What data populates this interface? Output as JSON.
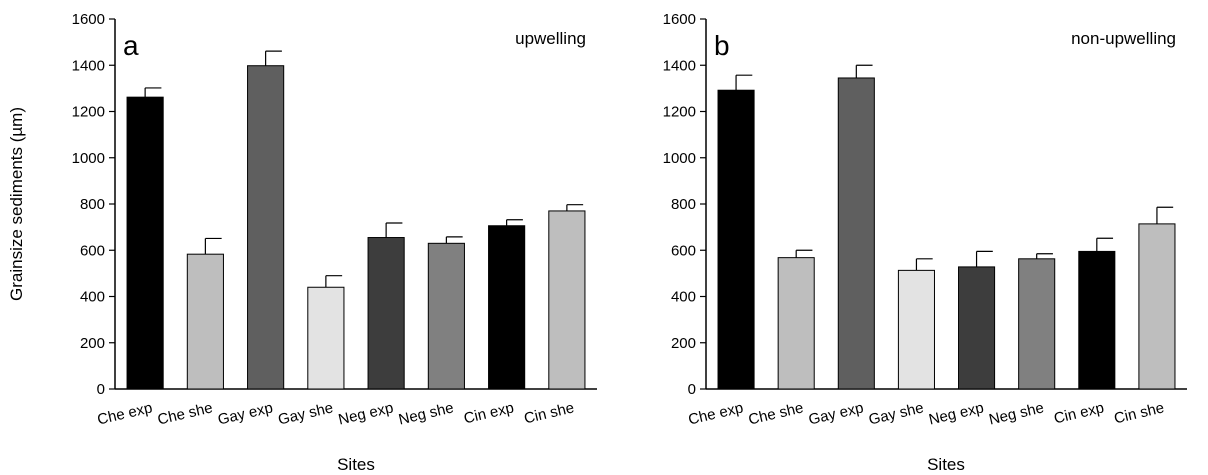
{
  "chart_data": [
    {
      "type": "bar",
      "panel_label": "a",
      "annotation": "upwelling",
      "categories": [
        "Che exp",
        "Che she",
        "Gay exp",
        "Gay she",
        "Neg exp",
        "Neg she",
        "Cin exp",
        "Cin she"
      ],
      "values": [
        1262,
        583,
        1398,
        440,
        655,
        630,
        706,
        770
      ],
      "errors": [
        40,
        68,
        63,
        50,
        63,
        28,
        26,
        27
      ],
      "bar_colors": [
        "#000000",
        "#bebebe",
        "#5f5f5f",
        "#e3e3e3",
        "#3d3d3d",
        "#808080",
        "#000000",
        "#bebebe"
      ],
      "xlabel": "Sites",
      "ylabel": "Grainsize sediments (µm)",
      "ylim": [
        0,
        1600
      ],
      "yticks": [
        "0",
        "200",
        "400",
        "600",
        "800",
        "1000",
        "1200",
        "1400",
        "1600"
      ],
      "grid": false
    },
    {
      "type": "bar",
      "panel_label": "b",
      "annotation": "non-upwelling",
      "categories": [
        "Che exp",
        "Che she",
        "Gay exp",
        "Gay she",
        "Neg exp",
        "Neg she",
        "Cin exp",
        "Cin she"
      ],
      "values": [
        1292,
        568,
        1345,
        513,
        528,
        563,
        595,
        714
      ],
      "errors": [
        65,
        32,
        55,
        50,
        67,
        22,
        57,
        72
      ],
      "bar_colors": [
        "#000000",
        "#bebebe",
        "#5f5f5f",
        "#e3e3e3",
        "#3d3d3d",
        "#808080",
        "#000000",
        "#bebebe"
      ],
      "xlabel": "Sites",
      "ylabel": "",
      "ylim": [
        0,
        1600
      ],
      "yticks": [
        "0",
        "200",
        "400",
        "600",
        "800",
        "1000",
        "1200",
        "1400",
        "1600"
      ],
      "grid": false
    }
  ]
}
